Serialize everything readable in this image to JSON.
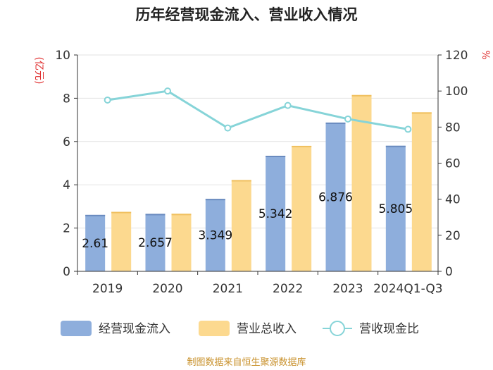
{
  "chart_data": {
    "type": "bar",
    "title": "历年经营现金流入、营业收入情况",
    "categories": [
      "2019",
      "2020",
      "2021",
      "2022",
      "2023",
      "2024Q1-Q3"
    ],
    "series": [
      {
        "name": "经营现金流入",
        "type": "bar",
        "axis": "left",
        "color": "#8eaedc",
        "values": [
          2.61,
          2.657,
          3.349,
          5.342,
          6.876,
          5.805
        ],
        "labels": [
          "2.61",
          "2.657",
          "3.349",
          "5.342",
          "6.876",
          "5.805"
        ]
      },
      {
        "name": "营业总收入",
        "type": "bar",
        "axis": "left",
        "color": "#fcd98f",
        "values": [
          2.75,
          2.66,
          4.22,
          5.8,
          8.15,
          7.35
        ]
      },
      {
        "name": "营收现金比",
        "type": "line",
        "axis": "right",
        "color": "#86d4d8",
        "values": [
          95,
          100,
          79.5,
          92,
          84.5,
          78.8
        ]
      }
    ],
    "y_left": {
      "label": "(亿元)",
      "min": 0,
      "max": 10,
      "ticks": [
        0,
        2,
        4,
        6,
        8,
        10
      ]
    },
    "y_right": {
      "label": "%",
      "min": 0,
      "max": 120,
      "ticks": [
        0,
        20,
        40,
        60,
        80,
        100,
        120
      ]
    },
    "legend": [
      "经营现金流入",
      "营业总收入",
      "营收现金比"
    ],
    "source": "制图数据来自恒生聚源数据库"
  }
}
